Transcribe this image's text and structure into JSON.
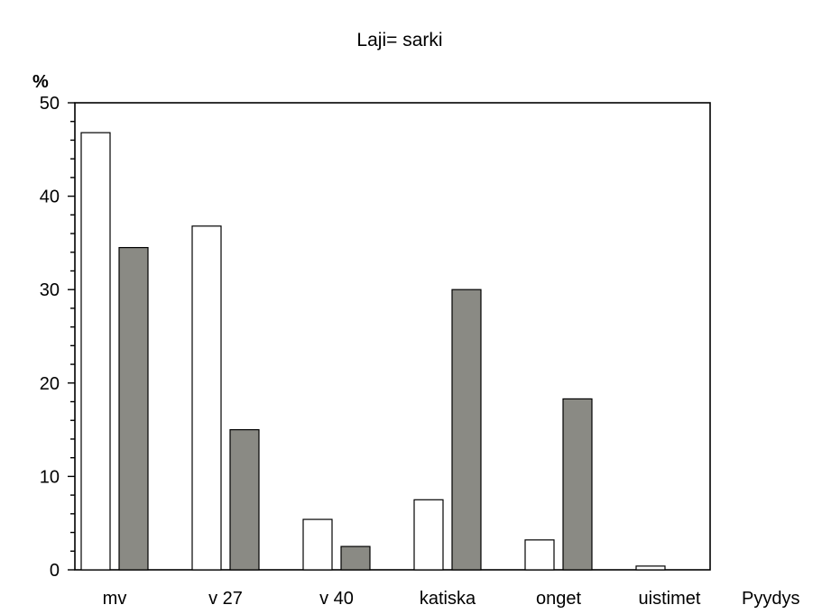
{
  "chart_data": {
    "type": "bar",
    "title": "Laji= sarki",
    "ylabel": "%",
    "xlabel": "Pyydys",
    "ylim": [
      0,
      50
    ],
    "yticks": [
      "0",
      "10",
      "20",
      "30",
      "40",
      "50"
    ],
    "categories": [
      "mv",
      "v 27",
      "v 40",
      "katiska",
      "onget",
      "uistimet"
    ],
    "series": [
      {
        "values": [
          46.8,
          36.8,
          5.4,
          7.5,
          3.2,
          0.4
        ]
      },
      {
        "values": [
          34.5,
          15.0,
          2.5,
          30.0,
          18.3,
          0
        ]
      }
    ],
    "colors": [
      "#ffffff",
      "#8a8a84"
    ],
    "grid": false,
    "legend": "none"
  }
}
